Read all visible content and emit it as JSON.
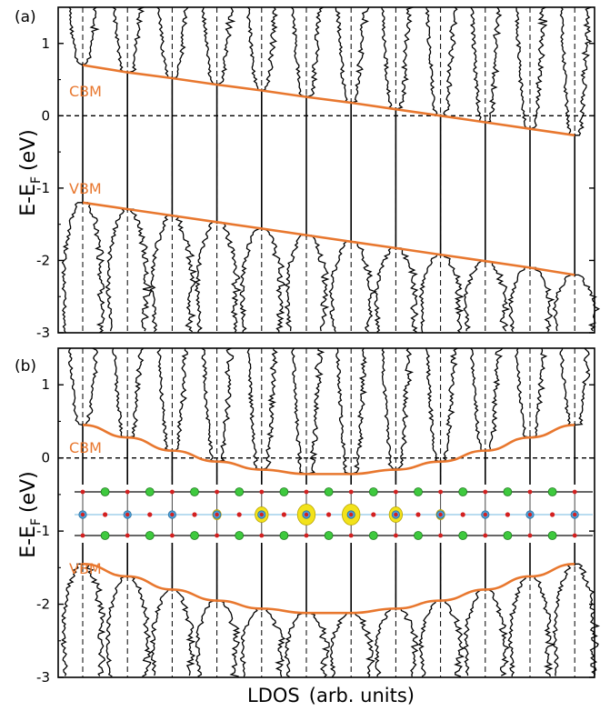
{
  "colors": {
    "band": "#e8772e",
    "ldos": "#000000",
    "axis": "#000000",
    "atom_green": "#3ec93e",
    "atom_red": "#d32020",
    "atom_blue": "#4aa3df",
    "charge_yellow": "#f2e21a"
  },
  "figure": {
    "xlabel_main": "LDOS",
    "xlabel_unit": "(arb. units)"
  },
  "chart_data": [
    {
      "type": "line",
      "panel_label": "(a)",
      "ylabel": "E-E",
      "ylabel_sub": "F",
      "ylabel_unit": "(eV)",
      "ylim": [
        -3,
        1.5
      ],
      "yticks": [
        "1",
        "0",
        "-1",
        "-2",
        "-3"
      ],
      "ytick_values": [
        1,
        0,
        -1,
        -2,
        -3
      ],
      "zero_line": true,
      "ldos_columns": 12,
      "annotations": [
        "CBM",
        "VBM"
      ],
      "series": [
        {
          "name": "CBM",
          "x": [
            1,
            2,
            3,
            4,
            5,
            6,
            7,
            8,
            9,
            10,
            11,
            12
          ],
          "values": [
            0.7,
            0.6,
            0.52,
            0.43,
            0.35,
            0.26,
            0.18,
            0.09,
            0.0,
            -0.09,
            -0.18,
            -0.27
          ]
        },
        {
          "name": "VBM",
          "x": [
            1,
            2,
            3,
            4,
            5,
            6,
            7,
            8,
            9,
            10,
            11,
            12
          ],
          "values": [
            -1.2,
            -1.29,
            -1.38,
            -1.47,
            -1.56,
            -1.65,
            -1.74,
            -1.83,
            -1.92,
            -2.01,
            -2.1,
            -2.2
          ]
        }
      ]
    },
    {
      "type": "line",
      "panel_label": "(b)",
      "ylabel": "E-E",
      "ylabel_sub": "F",
      "ylabel_unit": "(eV)",
      "ylim": [
        -3,
        1.5
      ],
      "yticks": [
        "1",
        "0",
        "-1",
        "-2",
        "-3"
      ],
      "ytick_values": [
        1,
        0,
        -1,
        -2,
        -3
      ],
      "zero_line": true,
      "ldos_columns": 12,
      "annotations": [
        "CBM",
        "VBM"
      ],
      "inset": "atomic structure with charge density (yellow) centred in the middle of the layer",
      "series": [
        {
          "name": "CBM",
          "x": [
            1,
            2,
            3,
            4,
            5,
            6,
            7,
            8,
            9,
            10,
            11,
            12
          ],
          "values": [
            0.45,
            0.28,
            0.1,
            -0.05,
            -0.16,
            -0.22,
            -0.22,
            -0.16,
            -0.05,
            0.1,
            0.28,
            0.45
          ]
        },
        {
          "name": "VBM",
          "x": [
            1,
            2,
            3,
            4,
            5,
            6,
            7,
            8,
            9,
            10,
            11,
            12
          ],
          "values": [
            -1.45,
            -1.62,
            -1.8,
            -1.95,
            -2.06,
            -2.12,
            -2.12,
            -2.06,
            -1.95,
            -1.8,
            -1.62,
            -1.45
          ]
        }
      ]
    }
  ]
}
